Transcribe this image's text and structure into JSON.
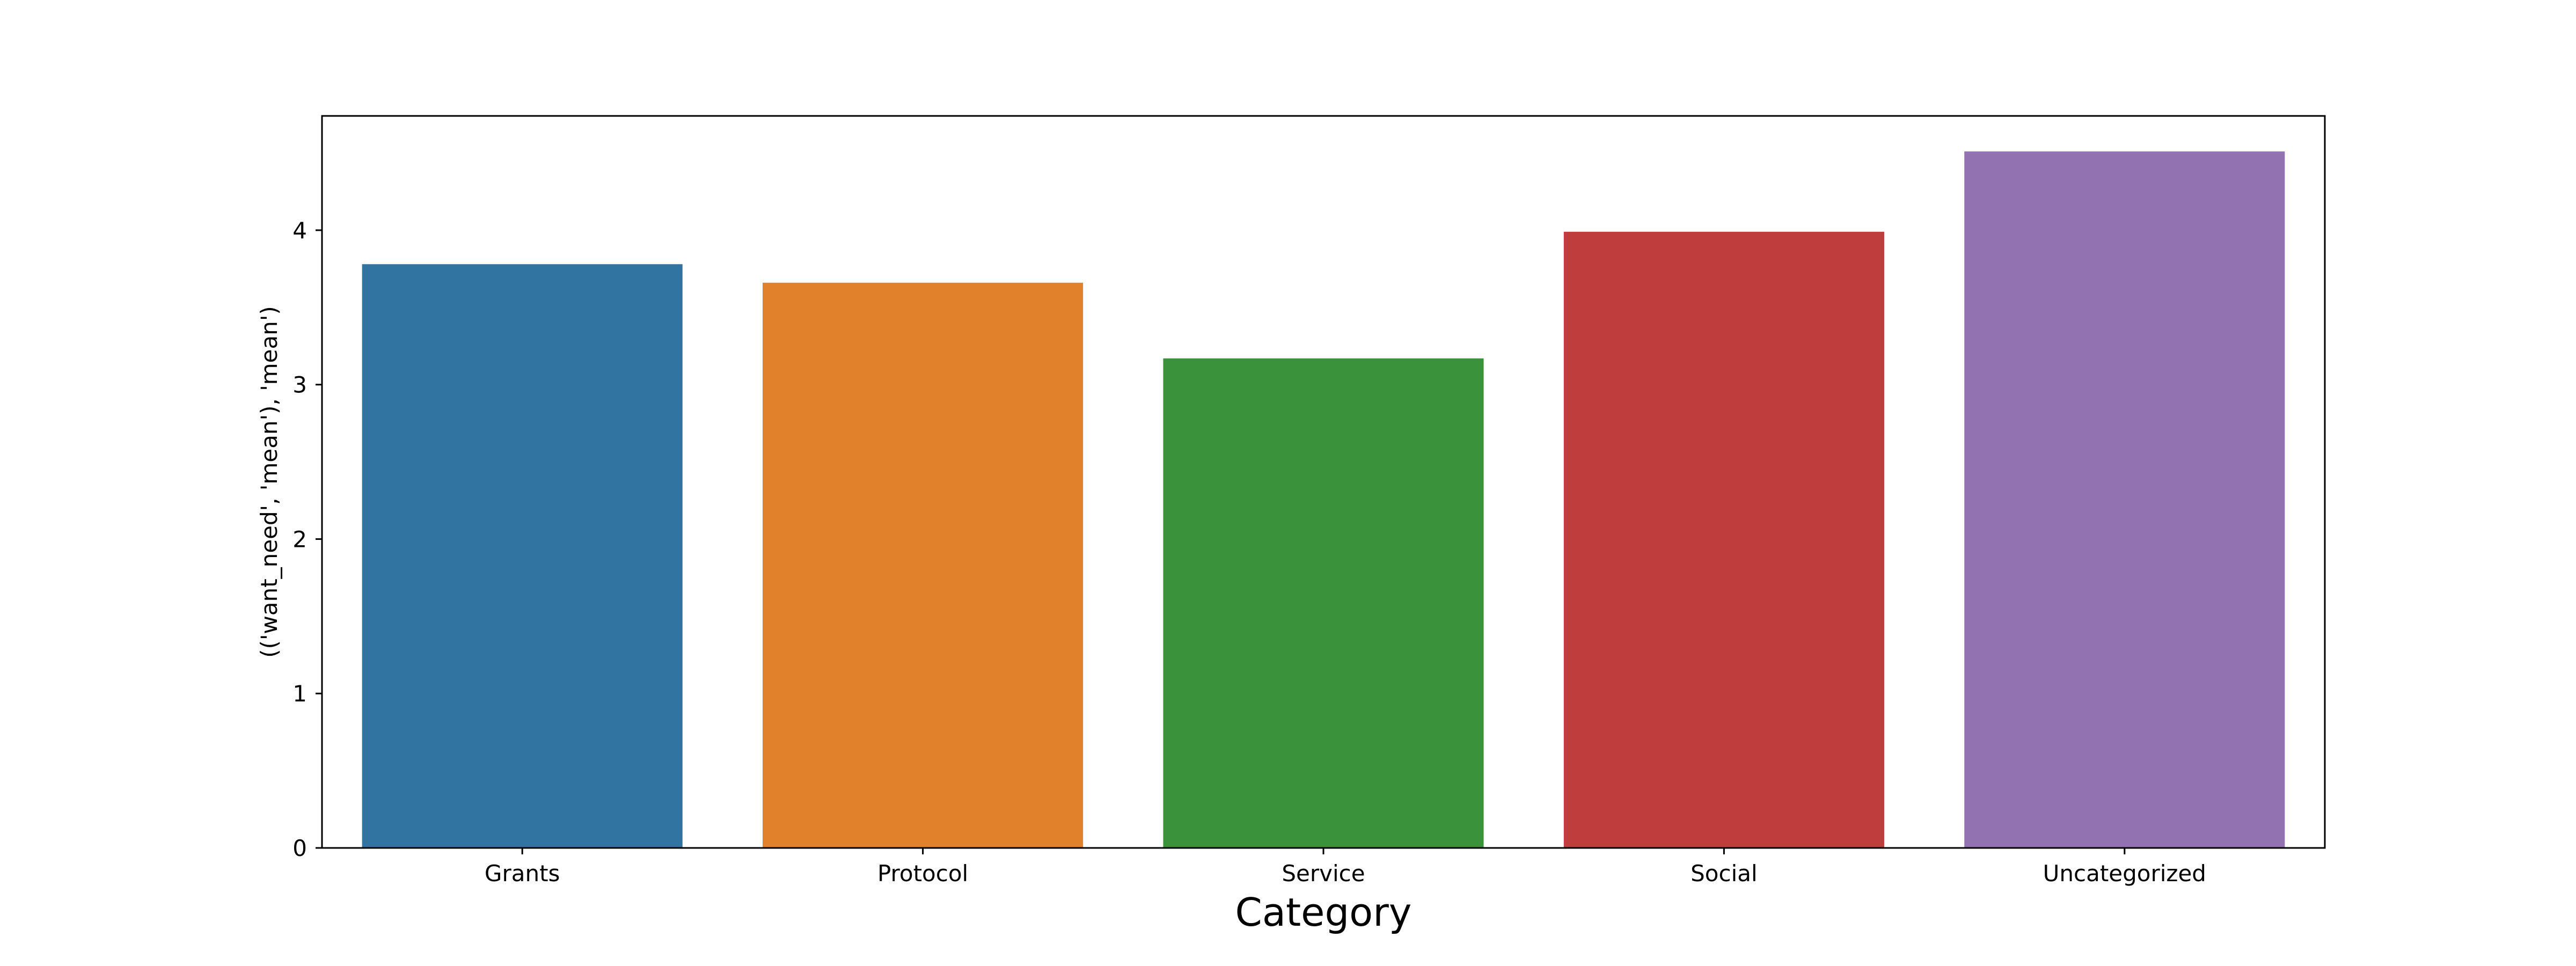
{
  "chart_data": {
    "type": "bar",
    "categories": [
      "Grants",
      "Protocol",
      "Service",
      "Social",
      "Uncategorized"
    ],
    "values": [
      3.78,
      3.66,
      3.17,
      3.99,
      4.51
    ],
    "xlabel": "Category",
    "ylabel": "(('want_need', 'mean'), 'mean')",
    "ylim": [
      0,
      4.74
    ],
    "yticks": [
      0,
      1,
      2,
      3,
      4
    ],
    "grid": false,
    "legend": "none",
    "colors": [
      "#3274a1",
      "#e1812c",
      "#3a923a",
      "#c03d3e",
      "#9372b2"
    ]
  }
}
